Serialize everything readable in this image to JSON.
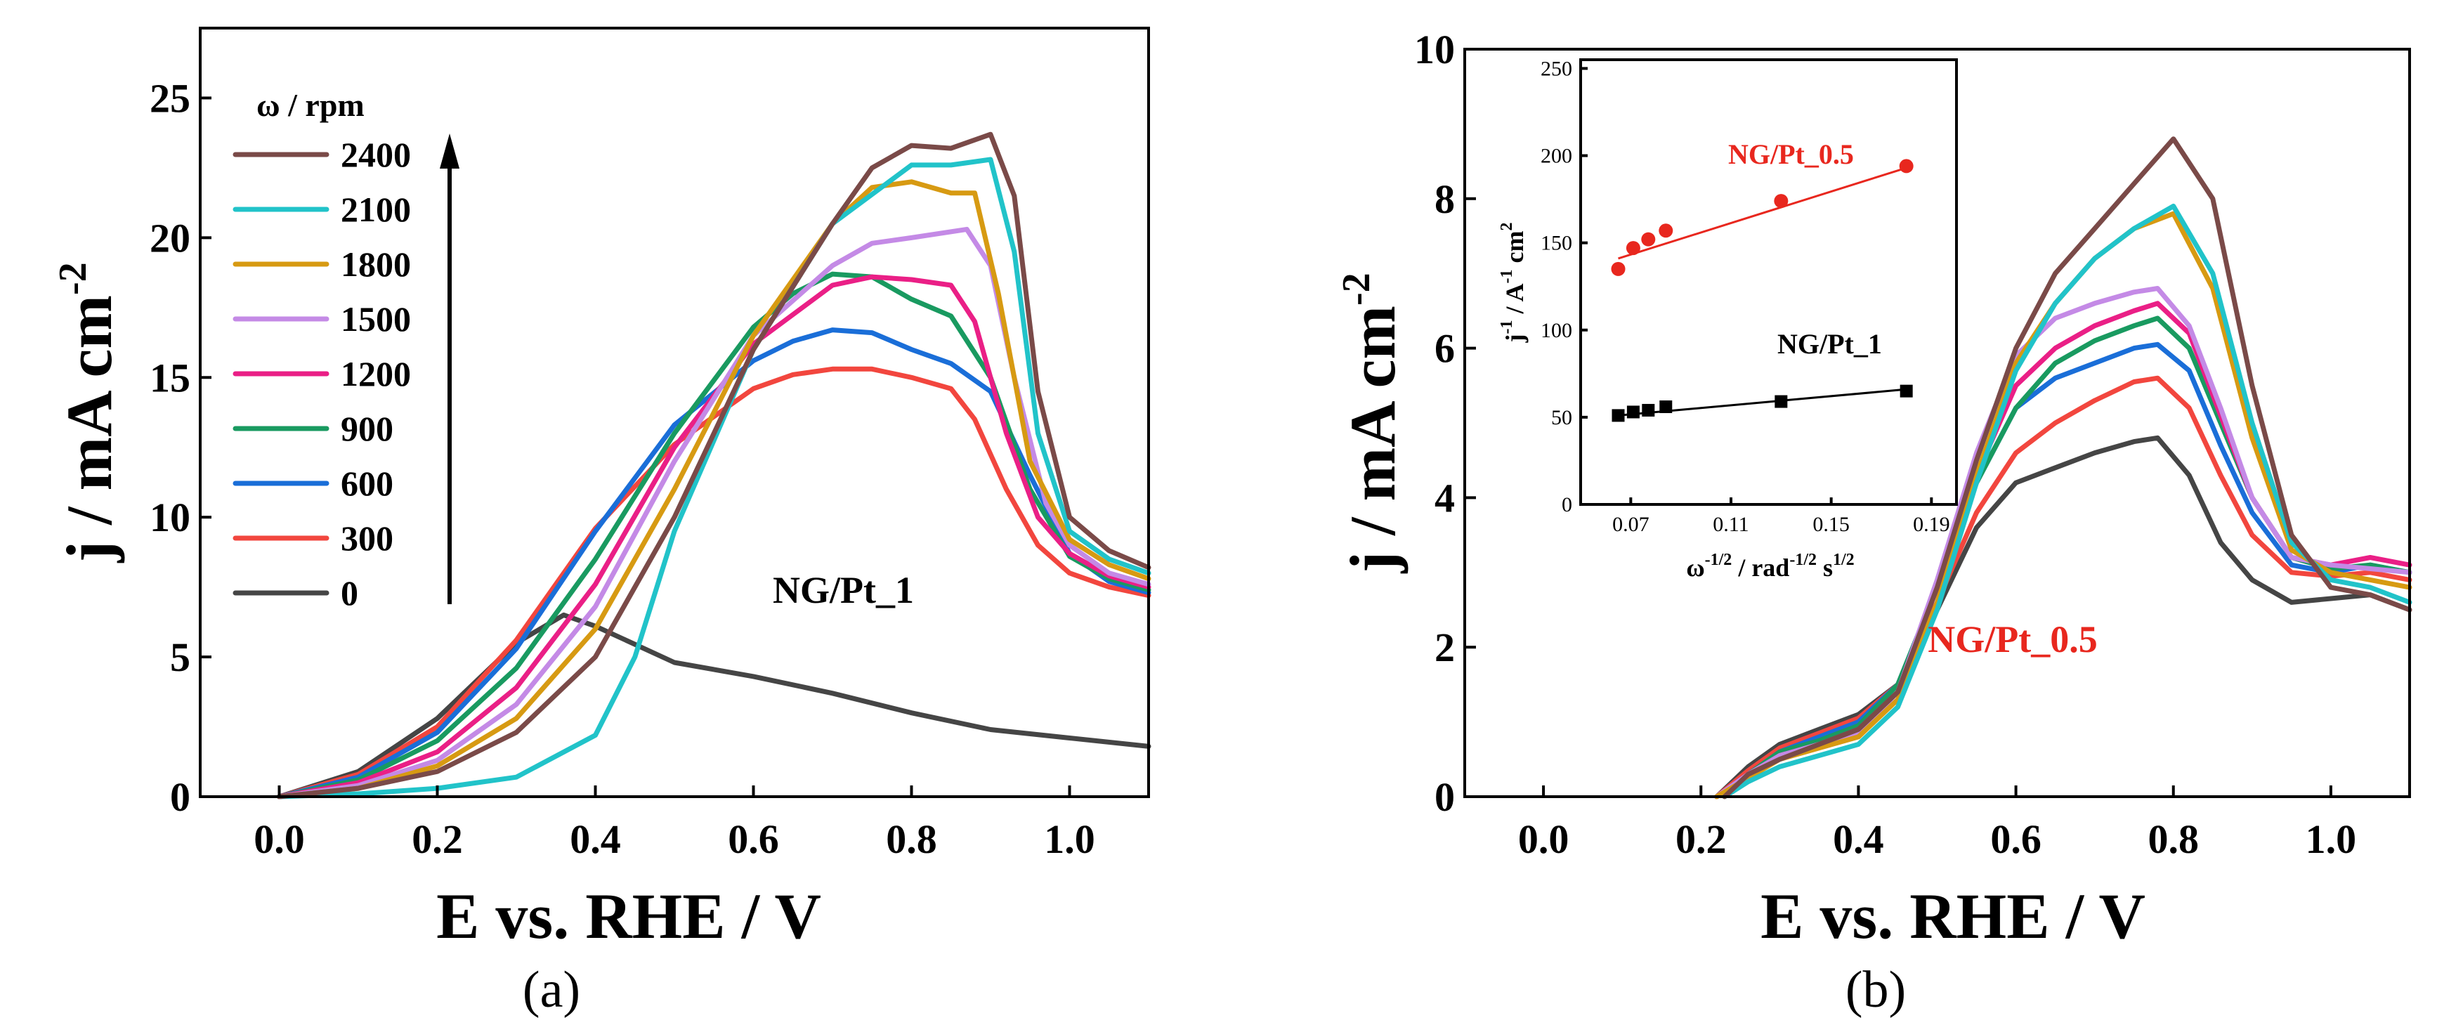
{
  "chart_data": [
    {
      "type": "line",
      "panel_label": "(a)",
      "xlabel": "E vs. RHE / V",
      "ylabel_main": "j / mA cm",
      "ylabel_sup": "-2",
      "xlim": [
        -0.1,
        1.1
      ],
      "ylim": [
        0,
        27.5
      ],
      "xticks": [
        0.0,
        0.2,
        0.4,
        0.6,
        0.8,
        1.0
      ],
      "xtick_labels": [
        "0.0",
        "0.2",
        "0.4",
        "0.6",
        "0.8",
        "1.0"
      ],
      "yticks": [
        0,
        5,
        10,
        15,
        20,
        25
      ],
      "ytick_labels": [
        "0",
        "5",
        "10",
        "15",
        "20",
        "25"
      ],
      "legend_title": "ω / rpm",
      "annotation": "NG/Pt_1",
      "annotation_color": "#000000",
      "series": [
        {
          "name": "2400",
          "color": "#7a4a48",
          "x": [
            0.0,
            0.1,
            0.2,
            0.3,
            0.4,
            0.5,
            0.6,
            0.7,
            0.75,
            0.8,
            0.85,
            0.9,
            0.93,
            0.96,
            1.0,
            1.05,
            1.1
          ],
          "y": [
            0,
            0.3,
            0.9,
            2.3,
            5.0,
            10.0,
            16.0,
            20.5,
            22.5,
            23.3,
            23.2,
            23.7,
            21.5,
            14.5,
            10.0,
            8.8,
            8.2
          ]
        },
        {
          "name": "2100",
          "color": "#21c3c9",
          "x": [
            0.0,
            0.1,
            0.2,
            0.3,
            0.4,
            0.45,
            0.5,
            0.6,
            0.7,
            0.8,
            0.85,
            0.9,
            0.93,
            0.96,
            1.0,
            1.05,
            1.1
          ],
          "y": [
            0,
            0.1,
            0.3,
            0.7,
            2.2,
            5.0,
            9.5,
            16.0,
            20.5,
            22.6,
            22.6,
            22.8,
            19.5,
            13.0,
            9.5,
            8.5,
            8.0
          ]
        },
        {
          "name": "1800",
          "color": "#d79a12",
          "x": [
            0.0,
            0.1,
            0.2,
            0.3,
            0.4,
            0.5,
            0.6,
            0.7,
            0.75,
            0.8,
            0.85,
            0.88,
            0.91,
            0.95,
            1.0,
            1.05,
            1.1
          ],
          "y": [
            0,
            0.3,
            1.1,
            2.8,
            6.0,
            11.0,
            16.5,
            20.5,
            21.8,
            22.0,
            21.6,
            21.6,
            18.0,
            12.0,
            9.2,
            8.3,
            7.8
          ]
        },
        {
          "name": "1500",
          "color": "#c48ae6",
          "x": [
            0.0,
            0.1,
            0.2,
            0.3,
            0.4,
            0.5,
            0.6,
            0.7,
            0.75,
            0.8,
            0.87,
            0.9,
            0.93,
            0.97,
            1.0,
            1.05,
            1.1
          ],
          "y": [
            0,
            0.4,
            1.3,
            3.3,
            6.8,
            12.0,
            16.5,
            19.0,
            19.8,
            20.0,
            20.3,
            19.0,
            15.0,
            10.5,
            9.0,
            8.0,
            7.6
          ]
        },
        {
          "name": "1200",
          "color": "#ea1f86",
          "x": [
            0.0,
            0.1,
            0.2,
            0.3,
            0.4,
            0.5,
            0.6,
            0.7,
            0.75,
            0.8,
            0.85,
            0.88,
            0.92,
            0.96,
            1.0,
            1.05,
            1.1
          ],
          "y": [
            0,
            0.5,
            1.6,
            3.9,
            7.6,
            12.5,
            16.2,
            18.3,
            18.6,
            18.5,
            18.3,
            17.0,
            13.0,
            10.0,
            8.7,
            7.9,
            7.5
          ]
        },
        {
          "name": "900",
          "color": "#199a60",
          "x": [
            0.0,
            0.1,
            0.2,
            0.3,
            0.4,
            0.5,
            0.6,
            0.65,
            0.7,
            0.75,
            0.8,
            0.85,
            0.9,
            0.95,
            1.0,
            1.05,
            1.1
          ],
          "y": [
            0,
            0.6,
            2.0,
            4.6,
            8.5,
            13.0,
            16.8,
            18.0,
            18.7,
            18.6,
            17.8,
            17.2,
            15.0,
            11.0,
            8.6,
            7.8,
            7.4
          ]
        },
        {
          "name": "600",
          "color": "#1a6ed8",
          "x": [
            0.0,
            0.1,
            0.2,
            0.3,
            0.4,
            0.5,
            0.6,
            0.65,
            0.7,
            0.75,
            0.8,
            0.85,
            0.9,
            0.95,
            1.0,
            1.05,
            1.1
          ],
          "y": [
            0,
            0.7,
            2.3,
            5.3,
            9.5,
            13.3,
            15.6,
            16.3,
            16.7,
            16.6,
            16.0,
            15.5,
            14.5,
            11.5,
            8.7,
            7.7,
            7.3
          ]
        },
        {
          "name": "300",
          "color": "#f2463e",
          "x": [
            0.0,
            0.1,
            0.2,
            0.3,
            0.4,
            0.5,
            0.6,
            0.65,
            0.7,
            0.75,
            0.8,
            0.85,
            0.88,
            0.92,
            0.96,
            1.0,
            1.05,
            1.1
          ],
          "y": [
            0,
            0.8,
            2.5,
            5.6,
            9.6,
            12.6,
            14.6,
            15.1,
            15.3,
            15.3,
            15.0,
            14.6,
            13.5,
            11.0,
            9.0,
            8.0,
            7.5,
            7.2
          ]
        },
        {
          "name": "0",
          "color": "#454545",
          "x": [
            0.0,
            0.1,
            0.2,
            0.3,
            0.36,
            0.4,
            0.5,
            0.6,
            0.7,
            0.8,
            0.9,
            1.0,
            1.1
          ],
          "y": [
            0,
            0.9,
            2.8,
            5.5,
            6.5,
            6.1,
            4.8,
            4.3,
            3.7,
            3.0,
            2.4,
            2.1,
            1.8
          ]
        }
      ]
    },
    {
      "type": "line",
      "panel_label": "(b)",
      "xlabel": "E vs. RHE / V",
      "ylabel_main": "j / mA cm",
      "ylabel_sup": "-2",
      "xlim": [
        -0.1,
        1.1
      ],
      "ylim": [
        0,
        10
      ],
      "xticks": [
        0.0,
        0.2,
        0.4,
        0.6,
        0.8,
        1.0
      ],
      "xtick_labels": [
        "0.0",
        "0.2",
        "0.4",
        "0.6",
        "0.8",
        "1.0"
      ],
      "yticks": [
        0,
        2,
        4,
        6,
        8,
        10
      ],
      "ytick_labels": [
        "0",
        "2",
        "4",
        "6",
        "8",
        "10"
      ],
      "annotation": "NG/Pt_0.5",
      "annotation_color": "#e8271e",
      "series": [
        {
          "name": "2400",
          "color": "#7a4a48",
          "x": [
            0.23,
            0.26,
            0.3,
            0.35,
            0.4,
            0.45,
            0.5,
            0.55,
            0.6,
            0.65,
            0.7,
            0.75,
            0.8,
            0.85,
            0.9,
            0.95,
            1.0,
            1.05,
            1.1
          ],
          "y": [
            0,
            0.3,
            0.5,
            0.7,
            0.9,
            1.4,
            2.8,
            4.5,
            6.0,
            7.0,
            7.6,
            8.2,
            8.8,
            8.0,
            5.5,
            3.5,
            2.8,
            2.7,
            2.5
          ]
        },
        {
          "name": "2100",
          "color": "#21c3c9",
          "x": [
            0.23,
            0.26,
            0.3,
            0.35,
            0.4,
            0.45,
            0.5,
            0.55,
            0.6,
            0.65,
            0.7,
            0.75,
            0.8,
            0.85,
            0.9,
            0.95,
            1.0,
            1.05,
            1.1
          ],
          "y": [
            0,
            0.2,
            0.4,
            0.55,
            0.7,
            1.2,
            2.5,
            4.2,
            5.7,
            6.6,
            7.2,
            7.6,
            7.9,
            7.0,
            5.0,
            3.4,
            2.9,
            2.8,
            2.6
          ]
        },
        {
          "name": "1800",
          "color": "#d79a12",
          "x": [
            0.22,
            0.26,
            0.3,
            0.35,
            0.4,
            0.45,
            0.5,
            0.55,
            0.6,
            0.65,
            0.7,
            0.75,
            0.8,
            0.85,
            0.9,
            0.95,
            1.0,
            1.05,
            1.1
          ],
          "y": [
            0,
            0.25,
            0.5,
            0.65,
            0.8,
            1.3,
            2.6,
            4.3,
            5.8,
            6.6,
            7.2,
            7.6,
            7.8,
            6.8,
            4.8,
            3.3,
            3.0,
            2.9,
            2.8
          ]
        },
        {
          "name": "1500",
          "color": "#c48ae6",
          "x": [
            0.22,
            0.26,
            0.3,
            0.35,
            0.4,
            0.45,
            0.5,
            0.55,
            0.6,
            0.65,
            0.7,
            0.75,
            0.78,
            0.82,
            0.86,
            0.9,
            0.95,
            1.0,
            1.05,
            1.1
          ],
          "y": [
            0,
            0.3,
            0.55,
            0.7,
            0.85,
            1.4,
            2.9,
            4.6,
            5.9,
            6.4,
            6.6,
            6.75,
            6.8,
            6.3,
            5.2,
            4.0,
            3.2,
            3.1,
            3.05,
            3.0
          ]
        },
        {
          "name": "1200",
          "color": "#ea1f86",
          "x": [
            0.22,
            0.26,
            0.3,
            0.35,
            0.4,
            0.45,
            0.5,
            0.55,
            0.6,
            0.65,
            0.7,
            0.75,
            0.78,
            0.82,
            0.86,
            0.9,
            0.95,
            1.0,
            1.05,
            1.1
          ],
          "y": [
            0,
            0.3,
            0.55,
            0.7,
            0.9,
            1.4,
            2.8,
            4.3,
            5.5,
            6.0,
            6.3,
            6.5,
            6.6,
            6.2,
            5.1,
            4.0,
            3.2,
            3.1,
            3.2,
            3.1
          ]
        },
        {
          "name": "900",
          "color": "#199a60",
          "x": [
            0.22,
            0.26,
            0.3,
            0.35,
            0.4,
            0.45,
            0.5,
            0.55,
            0.6,
            0.65,
            0.7,
            0.75,
            0.78,
            0.82,
            0.86,
            0.9,
            0.95,
            1.0,
            1.05,
            1.1
          ],
          "y": [
            0,
            0.3,
            0.6,
            0.75,
            0.95,
            1.5,
            2.8,
            4.2,
            5.2,
            5.8,
            6.1,
            6.3,
            6.4,
            6.0,
            5.0,
            4.0,
            3.2,
            3.05,
            3.1,
            3.0
          ]
        },
        {
          "name": "600",
          "color": "#1a6ed8",
          "x": [
            0.22,
            0.26,
            0.3,
            0.35,
            0.4,
            0.45,
            0.5,
            0.55,
            0.6,
            0.65,
            0.7,
            0.75,
            0.78,
            0.82,
            0.86,
            0.9,
            0.95,
            1.0,
            1.05,
            1.1
          ],
          "y": [
            0,
            0.3,
            0.6,
            0.8,
            1.0,
            1.5,
            2.8,
            4.2,
            5.2,
            5.6,
            5.8,
            6.0,
            6.05,
            5.7,
            4.7,
            3.8,
            3.1,
            3.0,
            3.1,
            3.0
          ]
        },
        {
          "name": "300",
          "color": "#f2463e",
          "x": [
            0.22,
            0.26,
            0.3,
            0.35,
            0.4,
            0.45,
            0.5,
            0.55,
            0.6,
            0.65,
            0.7,
            0.75,
            0.78,
            0.82,
            0.86,
            0.9,
            0.95,
            1.0,
            1.05,
            1.1
          ],
          "y": [
            0,
            0.35,
            0.65,
            0.85,
            1.05,
            1.5,
            2.6,
            3.8,
            4.6,
            5.0,
            5.3,
            5.55,
            5.6,
            5.2,
            4.3,
            3.5,
            3.0,
            2.95,
            3.0,
            2.9
          ]
        },
        {
          "name": "0",
          "color": "#454545",
          "x": [
            0.22,
            0.26,
            0.3,
            0.35,
            0.4,
            0.45,
            0.5,
            0.55,
            0.6,
            0.65,
            0.7,
            0.75,
            0.78,
            0.82,
            0.86,
            0.9,
            0.95,
            1.0,
            1.05,
            1.1
          ],
          "y": [
            0,
            0.4,
            0.7,
            0.9,
            1.1,
            1.5,
            2.5,
            3.6,
            4.2,
            4.4,
            4.6,
            4.75,
            4.8,
            4.3,
            3.4,
            2.9,
            2.6,
            2.65,
            2.7,
            2.5
          ]
        }
      ]
    },
    {
      "type": "scatter",
      "panel_label": "(b) inset",
      "xlabel": "ω",
      "xlabel_sup": "-1/2",
      "xlabel_mid": " / rad",
      "xlabel_sup2": "-1/2",
      "xlabel_end": " s",
      "xlabel_sup3": "1/2",
      "ylabel": "j",
      "ylabel_sup": "-1",
      "ylabel_mid": " / A",
      "ylabel_sup2": "-1",
      "ylabel_end": " cm",
      "ylabel_sup3": "2",
      "xlim": [
        0.05,
        0.2
      ],
      "ylim": [
        0,
        255
      ],
      "xticks": [
        0.07,
        0.11,
        0.15,
        0.19
      ],
      "xtick_labels": [
        "0.07",
        "0.11",
        "0.15",
        "0.19"
      ],
      "yticks": [
        0,
        50,
        100,
        150,
        200,
        250
      ],
      "ytick_labels": [
        "0",
        "50",
        "100",
        "150",
        "200",
        "250"
      ],
      "series": [
        {
          "name": "NG/Pt_0.5",
          "color": "#e8271e",
          "marker": "circle",
          "x": [
            0.065,
            0.071,
            0.077,
            0.084,
            0.13,
            0.18
          ],
          "y": [
            135,
            147,
            152,
            157,
            174,
            194
          ],
          "fit": [
            [
              0.065,
              141
            ],
            [
              0.18,
              193
            ]
          ]
        },
        {
          "name": "NG/Pt_1",
          "color": "#000000",
          "marker": "square",
          "x": [
            0.065,
            0.071,
            0.077,
            0.084,
            0.13,
            0.18
          ],
          "y": [
            51,
            53,
            54,
            56,
            59,
            65
          ],
          "fit": [
            [
              0.065,
              51
            ],
            [
              0.18,
              66
            ]
          ]
        }
      ]
    }
  ]
}
